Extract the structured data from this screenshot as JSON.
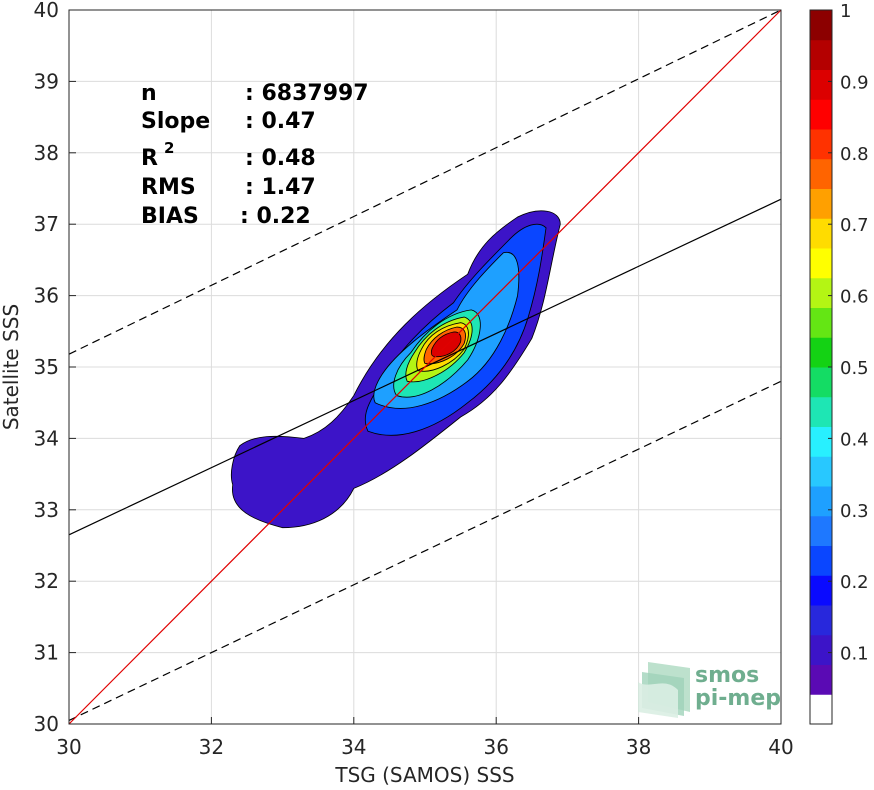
{
  "chart_data": {
    "type": "contour",
    "xlabel": "TSG (SAMOS) SSS",
    "ylabel": "Satellite SSS",
    "xlim": [
      30,
      40
    ],
    "ylim": [
      30,
      40
    ],
    "x_ticks": [
      "30",
      "32",
      "34",
      "36",
      "38",
      "40"
    ],
    "y_ticks": [
      "30",
      "31",
      "32",
      "33",
      "34",
      "35",
      "36",
      "37",
      "38",
      "39",
      "40"
    ],
    "grid": true,
    "stats": {
      "n": {
        "label": "n",
        "value": ": 6837997"
      },
      "slope": {
        "label": "Slope",
        "value": ": 0.47"
      },
      "r2": {
        "label": "R",
        "sup": "2",
        "value": ": 0.48"
      },
      "rms": {
        "label": "RMS",
        "value": ": 1.47"
      },
      "bias": {
        "label": "BIAS",
        "value": ": 0.22"
      }
    },
    "lines": {
      "one_to_one": {
        "color": "#e00000",
        "slope": 1,
        "intercept": 0
      },
      "regression": {
        "color": "#000000",
        "style": "solid",
        "points": [
          [
            30,
            32.65
          ],
          [
            40,
            37.35
          ]
        ]
      },
      "upper_bound": {
        "color": "#000000",
        "style": "dashed",
        "points": [
          [
            30,
            35.18
          ],
          [
            40,
            40
          ]
        ]
      },
      "lower_bound": {
        "color": "#000000",
        "style": "dashed",
        "points": [
          [
            30,
            30.05
          ],
          [
            40,
            34.8
          ]
        ]
      }
    },
    "density_peak": {
      "x": 35.35,
      "y": 35.3
    },
    "contour_levels": [
      0.05,
      0.1,
      0.2,
      0.3,
      0.4,
      0.5,
      0.6,
      0.7,
      0.8,
      0.9,
      1.0
    ],
    "colorbar": {
      "range": [
        0,
        1
      ],
      "tick_labels": [
        "0.1",
        "0.2",
        "0.3",
        "0.4",
        "0.5",
        "0.6",
        "0.7",
        "0.8",
        "0.9",
        "1"
      ],
      "colors": [
        "#ffffff",
        "#5a0ab4",
        "#3c14c8",
        "#2828dc",
        "#0a0aff",
        "#0a46ff",
        "#1e78ff",
        "#1ea0ff",
        "#28c8ff",
        "#28f0ff",
        "#1ee6b4",
        "#14dc64",
        "#14d214",
        "#64e614",
        "#b4f514",
        "#ffff00",
        "#ffdc00",
        "#ffa000",
        "#ff6400",
        "#ff3200",
        "#ff0000",
        "#dc0000",
        "#b40000",
        "#8c0000"
      ]
    },
    "logo": {
      "line1": "smos",
      "line2": "pi-mep"
    }
  }
}
